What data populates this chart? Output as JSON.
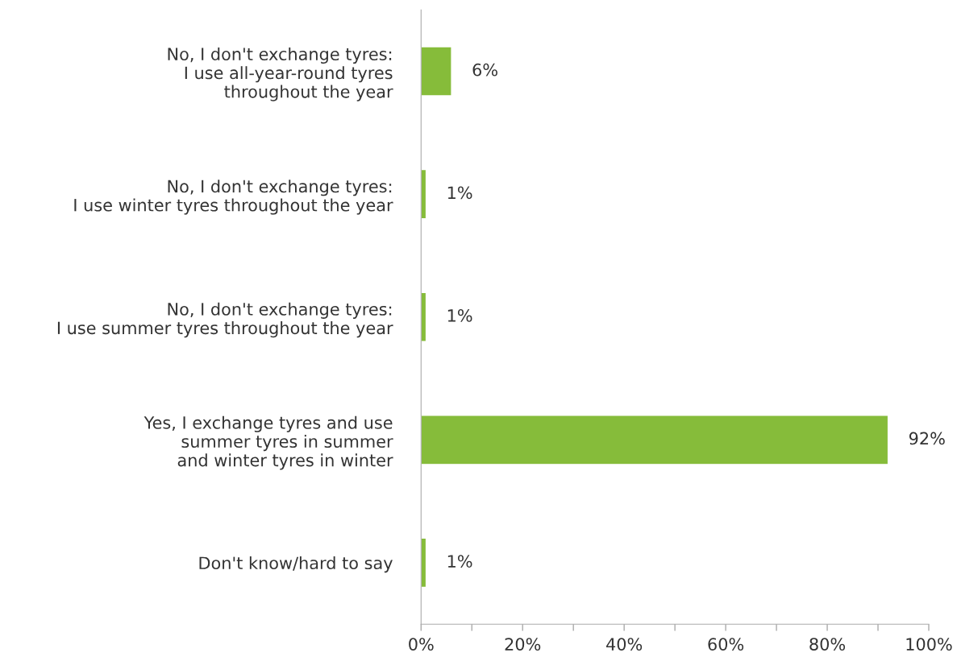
{
  "chart_data": {
    "type": "bar",
    "orientation": "horizontal",
    "categories": [
      "No, I don't exchange tyres:\nI use all-year-round tyres\nthroughout the year",
      "No, I don't exchange tyres:\nI use winter tyres throughout the year",
      "No, I don't exchange tyres:\nI use summer tyres throughout the year",
      "Yes, I exchange tyres and use\nsummer tyres in summer\nand winter tyres in winter",
      "Don't know/hard to say"
    ],
    "values": [
      6,
      1,
      1,
      92,
      1
    ],
    "value_labels": [
      "6%",
      "1%",
      "1%",
      "92%",
      "1%"
    ],
    "color": "#86bc3a",
    "xlim": [
      0,
      100
    ],
    "xticks": [
      {
        "value": 0,
        "label": "0%"
      },
      {
        "value": 10,
        "label": null
      },
      {
        "value": 20,
        "label": "20%"
      },
      {
        "value": 30,
        "label": null
      },
      {
        "value": 40,
        "label": "40%"
      },
      {
        "value": 50,
        "label": null
      },
      {
        "value": 60,
        "label": "60%"
      },
      {
        "value": 70,
        "label": null
      },
      {
        "value": 80,
        "label": "80%"
      },
      {
        "value": 90,
        "label": null
      },
      {
        "value": 100,
        "label": "100%"
      }
    ],
    "grid": false,
    "legend": false
  }
}
